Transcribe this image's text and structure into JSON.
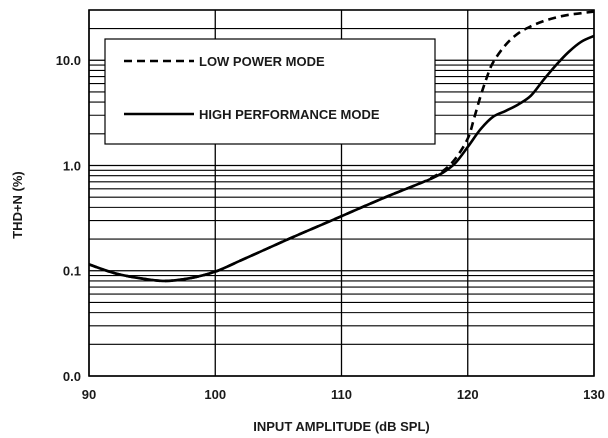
{
  "chart_data": {
    "type": "line",
    "xlabel": "INPUT AMPLITUDE (dB SPL)",
    "ylabel": "THD+N  (%)",
    "xlim": [
      90,
      130
    ],
    "ylim": [
      0.01,
      30
    ],
    "y_scale": "log",
    "grid": true,
    "legend_position": "top-left",
    "x_ticks": [
      90,
      100,
      110,
      120,
      130
    ],
    "x_tick_labels": [
      "90",
      "100",
      "110",
      "120",
      "130"
    ],
    "y_ticks": [
      0.01,
      0.1,
      1,
      10
    ],
    "y_tick_labels": [
      "0.0",
      "0.1",
      "1.0",
      "10.0"
    ],
    "series": [
      {
        "name": "LOW POWER MODE",
        "style": "dashed",
        "color": "#000000",
        "x": [
          90,
          92,
          94,
          96,
          98,
          100,
          102,
          104,
          106,
          108,
          110,
          112,
          114,
          116,
          117,
          118,
          119,
          120,
          120.5,
          121,
          121.5,
          122,
          123,
          124,
          125,
          126,
          127,
          128,
          129,
          130
        ],
        "y": [
          0.115,
          0.095,
          0.085,
          0.08,
          0.085,
          0.098,
          0.125,
          0.16,
          0.205,
          0.26,
          0.33,
          0.42,
          0.53,
          0.66,
          0.75,
          0.88,
          1.15,
          1.8,
          2.8,
          4.5,
          6.8,
          9.5,
          14,
          18,
          21,
          23.5,
          25.5,
          27,
          28,
          29
        ]
      },
      {
        "name": "HIGH PERFORMANCE MODE",
        "style": "solid",
        "color": "#000000",
        "x": [
          90,
          92,
          94,
          96,
          98,
          100,
          102,
          104,
          106,
          108,
          110,
          112,
          114,
          116,
          117,
          118,
          119,
          120,
          121,
          122,
          123,
          124,
          125,
          126,
          127,
          128,
          129,
          130
        ],
        "y": [
          0.115,
          0.095,
          0.085,
          0.08,
          0.085,
          0.098,
          0.125,
          0.16,
          0.205,
          0.26,
          0.33,
          0.42,
          0.53,
          0.66,
          0.74,
          0.85,
          1.05,
          1.5,
          2.2,
          2.9,
          3.3,
          3.8,
          4.6,
          6.5,
          9,
          12,
          15,
          17
        ]
      }
    ]
  }
}
